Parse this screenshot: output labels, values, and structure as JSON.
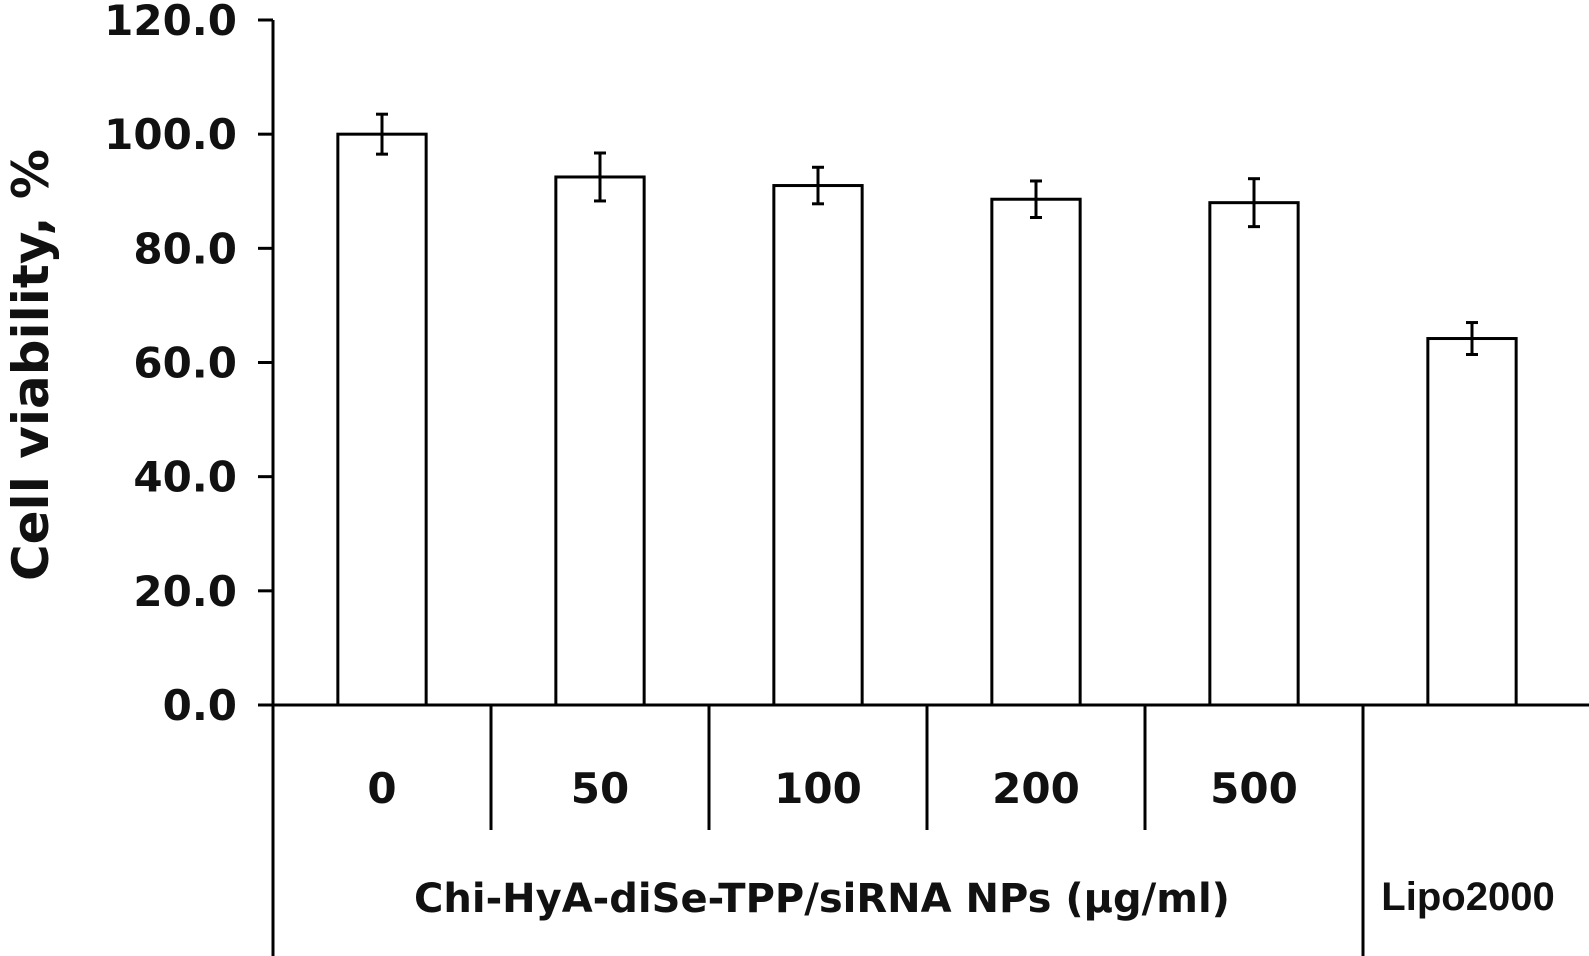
{
  "chart_data": {
    "type": "bar",
    "title": "",
    "xlabel": "",
    "ylabel": "Cell viability, %",
    "ylim": [
      0,
      120
    ],
    "yticks": [
      "0.0",
      "20.0",
      "40.0",
      "60.0",
      "80.0",
      "100.0",
      "120.0"
    ],
    "grid": false,
    "categories": [
      "0",
      "50",
      "100",
      "200",
      "500",
      ""
    ],
    "values": [
      100.0,
      92.5,
      91.0,
      88.6,
      88.0,
      64.2
    ],
    "errors": [
      3.5,
      4.2,
      3.2,
      3.2,
      4.2,
      2.8
    ],
    "groups": [
      {
        "label": "Chi-HyA-diSe-TPP/siRNA NPs (µg/ml)",
        "categories": [
          "0",
          "50",
          "100",
          "200",
          "500"
        ]
      },
      {
        "label": "Lipo2000",
        "categories": [
          ""
        ]
      }
    ],
    "bar_fill": "#ffffff",
    "bar_stroke": "#000000"
  }
}
